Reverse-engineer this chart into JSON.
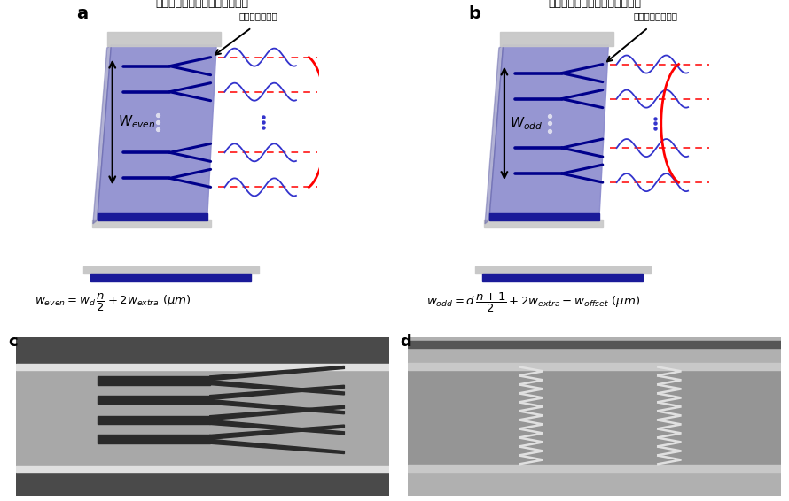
{
  "fig_width": 8.9,
  "fig_height": 5.66,
  "dpi": 100,
  "bg_color": "#ffffff",
  "panel_a_title": "偶数阶模式调控器件结构示意图",
  "panel_b_title": "奇数阶模式调控器件结构示意图",
  "panel_a_label": "完整超材料模块",
  "panel_b_label": "不完整超材料模块",
  "panel_a_w_label": "$W_{even}$",
  "panel_b_w_label": "$W_{odd}$",
  "chip_color": "#8888cc",
  "chip_dark": "#6666aa",
  "gray_slab": "#c8c8c8",
  "blue_strip": "#1a1a99",
  "waveguide_color": "#00008B",
  "red_dash_color": "#ff0000",
  "blue_wave_color": "#3333cc",
  "red_arc_color": "#ff0000",
  "dot_color_chip": "#ddddee",
  "dot_color_wave": "#3333cc"
}
